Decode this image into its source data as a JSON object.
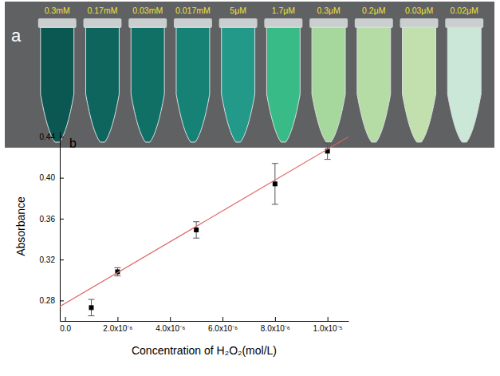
{
  "chart_data": [
    {
      "type": "photo",
      "panel_label": "a",
      "categories": [
        "0.3mM",
        "0.17mM",
        "0.03mM",
        "0.017mM",
        "5μM",
        "1.7μM",
        "0.3μM",
        "0.2μM",
        "0.03μM",
        "0.02μM"
      ],
      "colors": [
        "#0b5852",
        "#0e655e",
        "#117066",
        "#168276",
        "#23998a",
        "#38bb86",
        "#a6d79c",
        "#b6dca6",
        "#c2e0ae",
        "#cbe7d8"
      ]
    },
    {
      "type": "scatter",
      "panel_label": "b",
      "x_label": "Concentration of H₂O₂(mol/L)",
      "y_label": "Absorbance",
      "xlim": [
        -2e-07,
        1.08e-05
      ],
      "ylim": [
        0.26,
        0.445
      ],
      "xticks": [
        {
          "value": 0,
          "label": "0.0"
        },
        {
          "value": 2e-06,
          "label": "2.0x10⁻⁶"
        },
        {
          "value": 4e-06,
          "label": "4.0x10⁻⁶"
        },
        {
          "value": 6e-06,
          "label": "6.0x10⁻⁶"
        },
        {
          "value": 8e-06,
          "label": "8.0x10⁻⁶"
        },
        {
          "value": 1e-05,
          "label": "1.0x10⁻⁵"
        }
      ],
      "yticks": [
        0.28,
        0.32,
        0.36,
        {
          "value": 0.4,
          "label": "0.40"
        },
        0.44
      ],
      "series": [
        {
          "type": "scatter",
          "marker": "square",
          "color": "#000000",
          "x": [
            1e-06,
            2e-06,
            5e-06,
            8e-06,
            1e-05
          ],
          "values": [
            0.273,
            0.308,
            0.349,
            0.394,
            0.426
          ],
          "errors": [
            0.008,
            0.004,
            0.008,
            0.02,
            0.008
          ]
        },
        {
          "type": "line",
          "line_style": "solid",
          "color": "#e06666",
          "x": [
            -2e-07,
            1.08e-05
          ],
          "values": [
            0.274,
            0.44
          ]
        }
      ]
    }
  ]
}
